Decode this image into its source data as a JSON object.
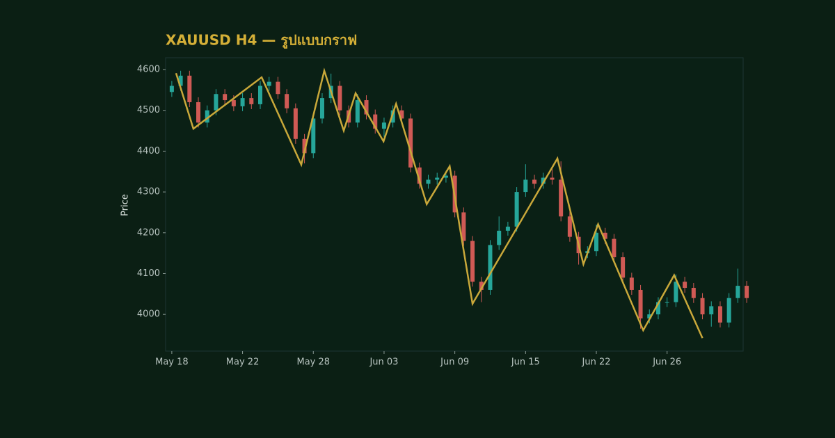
{
  "chart_data": {
    "type": "candlestick",
    "title": "XAUUSD H4 — รูปแบบกราฟ",
    "y_label": "Price",
    "x": [
      0,
      0.5,
      1,
      1.5,
      2,
      2.5,
      3,
      3.5,
      4,
      4.5,
      5,
      5.5,
      6,
      6.5,
      7,
      7.5,
      8,
      8.5,
      9,
      9.5,
      10,
      10.5,
      11,
      11.5,
      12,
      12.5,
      13,
      13.5,
      14,
      14.5,
      15,
      15.5,
      16,
      16.5,
      17,
      17.5,
      18,
      18.5,
      19,
      19.5,
      20,
      20.5,
      21,
      21.5,
      22,
      22.5,
      23,
      23.5,
      24,
      24.5,
      25,
      25.5,
      26,
      26.5,
      27,
      27.5,
      28,
      28.5,
      29,
      29.5,
      30,
      30.5,
      31,
      31.5,
      32,
      32.5
    ],
    "open": [
      4545,
      4560,
      4585,
      4520,
      4470,
      4500,
      4540,
      4525,
      4510,
      4530,
      4515,
      4560,
      4570,
      4540,
      4505,
      4430,
      4395,
      4480,
      4530,
      4560,
      4500,
      4470,
      4525,
      4490,
      4455,
      4470,
      4500,
      4480,
      4360,
      4320,
      4330,
      4335,
      4340,
      4250,
      4180,
      4080,
      4060,
      4170,
      4205,
      4215,
      4300,
      4330,
      4320,
      4335,
      4330,
      4240,
      4190,
      4150,
      4155,
      4200,
      4185,
      4140,
      4090,
      4060,
      3990,
      4000,
      4030,
      4030,
      4080,
      4065,
      4040,
      4000,
      4020,
      3980,
      4040,
      4070
    ],
    "high": [
      4572,
      4597,
      4597,
      4532,
      4512,
      4552,
      4552,
      4537,
      4542,
      4542,
      4572,
      4582,
      4582,
      4552,
      4517,
      4442,
      4492,
      4542,
      4590,
      4572,
      4512,
      4540,
      4537,
      4502,
      4482,
      4512,
      4512,
      4492,
      4372,
      4342,
      4347,
      4352,
      4352,
      4262,
      4192,
      4092,
      4182,
      4240,
      4227,
      4312,
      4368,
      4342,
      4347,
      4360,
      4375,
      4252,
      4202,
      4167,
      4220,
      4212,
      4197,
      4152,
      4102,
      4072,
      4012,
      4042,
      4042,
      4098,
      4092,
      4077,
      4052,
      4032,
      4032,
      4052,
      4112,
      4082
    ],
    "low": [
      4533,
      4548,
      4508,
      4458,
      4458,
      4488,
      4513,
      4498,
      4498,
      4503,
      4503,
      4548,
      4528,
      4493,
      4418,
      4370,
      4383,
      4468,
      4518,
      4488,
      4458,
      4458,
      4478,
      4443,
      4435,
      4458,
      4468,
      4348,
      4308,
      4308,
      4318,
      4323,
      4238,
      4168,
      4068,
      4030,
      4048,
      4158,
      4193,
      4203,
      4288,
      4308,
      4308,
      4318,
      4228,
      4178,
      4122,
      4138,
      4143,
      4173,
      4128,
      4078,
      4048,
      3965,
      3978,
      3988,
      4018,
      4018,
      4053,
      4028,
      3988,
      3970,
      3968,
      3968,
      4028,
      4028
    ],
    "close": [
      4560,
      4585,
      4520,
      4470,
      4500,
      4540,
      4525,
      4510,
      4530,
      4515,
      4560,
      4570,
      4540,
      4505,
      4430,
      4395,
      4480,
      4530,
      4560,
      4500,
      4470,
      4525,
      4490,
      4455,
      4470,
      4500,
      4480,
      4360,
      4320,
      4330,
      4335,
      4340,
      4250,
      4180,
      4080,
      4060,
      4170,
      4205,
      4215,
      4300,
      4330,
      4320,
      4335,
      4330,
      4240,
      4190,
      4150,
      4155,
      4200,
      4185,
      4140,
      4090,
      4060,
      3990,
      4000,
      4030,
      4030,
      4080,
      4065,
      4040,
      4000,
      4020,
      3980,
      4040,
      4070,
      4040
    ],
    "up_color": "#26a69a",
    "down_color": "#d05a55",
    "zigzag": {
      "color": "#c9a83a",
      "x": [
        0.24,
        1.22,
        5.08,
        7.32,
        8.62,
        9.72,
        10.39,
        11.97,
        12.68,
        14.41,
        15.71,
        17.0,
        21.8,
        23.27,
        24.1,
        26.65,
        28.4,
        30.0
      ],
      "values": [
        4591,
        4455,
        4581,
        4367,
        4597,
        4450,
        4542,
        4424,
        4516,
        4270,
        4363,
        4026,
        4382,
        4123,
        4221,
        3961,
        4096,
        3942
      ]
    },
    "xlim": [
      -0.35,
      32.3
    ],
    "xticks": [
      {
        "value": 0,
        "label": "May 18"
      },
      {
        "value": 4,
        "label": "May 22"
      },
      {
        "value": 8,
        "label": "May 28"
      },
      {
        "value": 12,
        "label": "Jun 03"
      },
      {
        "value": 16,
        "label": "Jun 09"
      },
      {
        "value": 20,
        "label": "Jun 15"
      },
      {
        "value": 24,
        "label": "Jun 22"
      },
      {
        "value": 28,
        "label": "Jun 26"
      }
    ],
    "ylim": [
      3910,
      4629
    ],
    "yticks": [
      4000,
      4100,
      4200,
      4300,
      4400,
      4500,
      4600
    ]
  }
}
